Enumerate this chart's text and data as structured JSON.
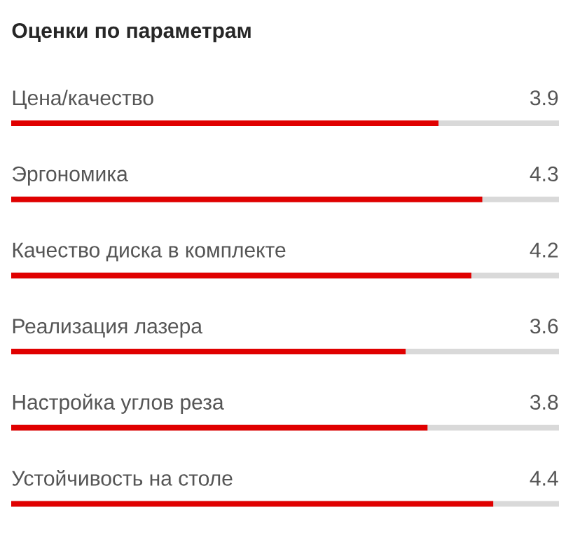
{
  "chart_data": {
    "type": "bar",
    "orientation": "horizontal",
    "title": "Оценки по параметрам",
    "categories": [
      "Цена/качество",
      "Эргономика",
      "Качество диска в комплекте",
      "Реализация лазера",
      "Настройка углов реза",
      "Устойчивость на столе"
    ],
    "values": [
      3.9,
      4.3,
      4.2,
      3.6,
      3.8,
      4.4
    ],
    "color": "#e00000",
    "xlim": [
      0,
      5
    ],
    "data_labels": true
  }
}
